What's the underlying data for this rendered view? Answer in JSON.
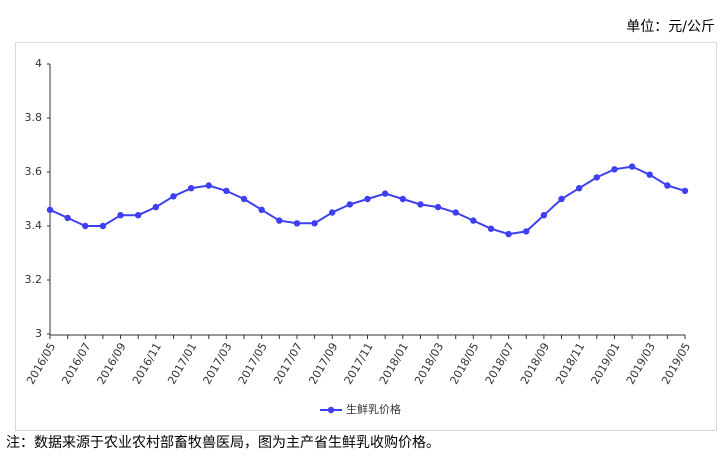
{
  "unit": "单位：元/公斤",
  "note": "注：数据来源于农业农村部畜牧兽医局，图为主产省生鲜乳收购价格。",
  "chart_data": {
    "type": "line",
    "categories": [
      "2016/05",
      null,
      "2016/07",
      null,
      "2016/09",
      null,
      "2016/11",
      null,
      "2017/01",
      null,
      "2017/03",
      null,
      "2017/05",
      null,
      "2017/07",
      null,
      "2017/09",
      null,
      "2017/11",
      null,
      "2018/01",
      null,
      "2018/03",
      null,
      "2018/05",
      null,
      "2018/07",
      null,
      "2018/09",
      null,
      "2018/11",
      null,
      "2019/01",
      null,
      "2019/03",
      null,
      "2019/05"
    ],
    "series": [
      {
        "name": "生鲜乳价格",
        "color": "#3f3ff2",
        "values": [
          3.46,
          3.43,
          3.4,
          3.4,
          3.44,
          3.44,
          3.47,
          3.51,
          3.54,
          3.55,
          3.53,
          3.5,
          3.46,
          3.42,
          3.41,
          3.41,
          3.45,
          3.48,
          3.5,
          3.52,
          3.5,
          3.48,
          3.47,
          3.45,
          3.42,
          3.39,
          3.37,
          3.38,
          3.44,
          3.5,
          3.54,
          3.58,
          3.61,
          3.62,
          3.59,
          3.55,
          3.53
        ]
      }
    ],
    "ylim": [
      3,
      4
    ],
    "yticks": [
      3,
      3.2,
      3.4,
      3.6,
      3.8,
      4
    ],
    "grid": false
  }
}
